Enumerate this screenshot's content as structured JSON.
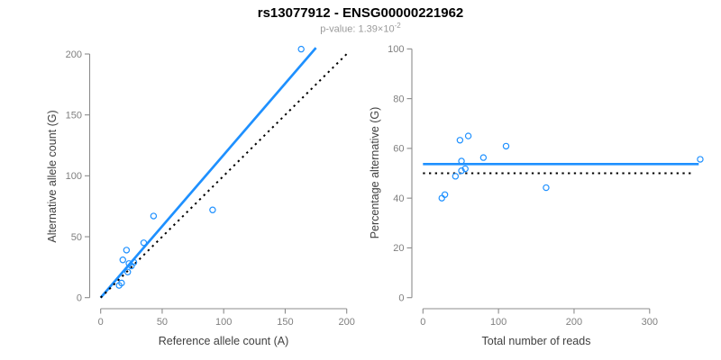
{
  "figure": {
    "title": "rs13077912 - ENSG00000221962",
    "pvalue_label": "p-value: 1.39×10",
    "pvalue_exponent": "-2"
  },
  "colors": {
    "accent_blue": "#1E90FF",
    "axis_line_gray": "#8c8c8c",
    "tick_label_gray": "#7f7f7f",
    "axis_title_gray": "#404040",
    "subtitle_gray": "#9a9a9a",
    "dotted_black": "#000000"
  },
  "chart_data": [
    {
      "type": "scatter",
      "panel": "left",
      "xlabel": "Reference allele count (A)",
      "ylabel": "Alternative allele count (G)",
      "xlim": [
        0,
        200
      ],
      "ylim": [
        0,
        200
      ],
      "xticks": [
        0,
        50,
        100,
        150,
        200
      ],
      "yticks": [
        0,
        50,
        100,
        150,
        200
      ],
      "grid": false,
      "points": [
        [
          163,
          204
        ],
        [
          91,
          72
        ],
        [
          43,
          67
        ],
        [
          35,
          45
        ],
        [
          21,
          39
        ],
        [
          18,
          31
        ],
        [
          27,
          29
        ],
        [
          23,
          28
        ],
        [
          25,
          26
        ],
        [
          22,
          21
        ],
        [
          15,
          10
        ],
        [
          17,
          12
        ]
      ],
      "lines": [
        {
          "name": "fitted-ratio-line",
          "style": "solid",
          "color_key": "accent_blue",
          "slope": 1.172,
          "intercept": 0,
          "x_range": [
            0,
            175
          ]
        },
        {
          "name": "identity-line",
          "style": "dotted",
          "color_key": "dotted_black",
          "slope": 1,
          "intercept": 0,
          "x_range": [
            0,
            202
          ]
        }
      ]
    },
    {
      "type": "scatter",
      "panel": "right",
      "xlabel": "Total number of reads",
      "ylabel": "Percentage alternative (G)",
      "xlim": [
        0,
        300
      ],
      "ylim": [
        0,
        100
      ],
      "xticks": [
        0,
        100,
        200,
        300
      ],
      "yticks": [
        0,
        20,
        40,
        60,
        80,
        100
      ],
      "grid": false,
      "points": [
        [
          367,
          55.6
        ],
        [
          163,
          44.2
        ],
        [
          110,
          60.9
        ],
        [
          80,
          56.3
        ],
        [
          60,
          65.0
        ],
        [
          49,
          63.3
        ],
        [
          56,
          51.8
        ],
        [
          51,
          54.9
        ],
        [
          51,
          51.0
        ],
        [
          43,
          48.8
        ],
        [
          25,
          40.0
        ],
        [
          29,
          41.4
        ]
      ],
      "lines": [
        {
          "name": "mean-percentage-line",
          "style": "solid",
          "color_key": "accent_blue",
          "y": 53.7,
          "x_range": [
            0,
            365
          ]
        },
        {
          "name": "fifty-percent-line",
          "style": "dotted",
          "color_key": "dotted_black",
          "y": 50,
          "x_range": [
            0,
            355
          ]
        }
      ]
    }
  ]
}
